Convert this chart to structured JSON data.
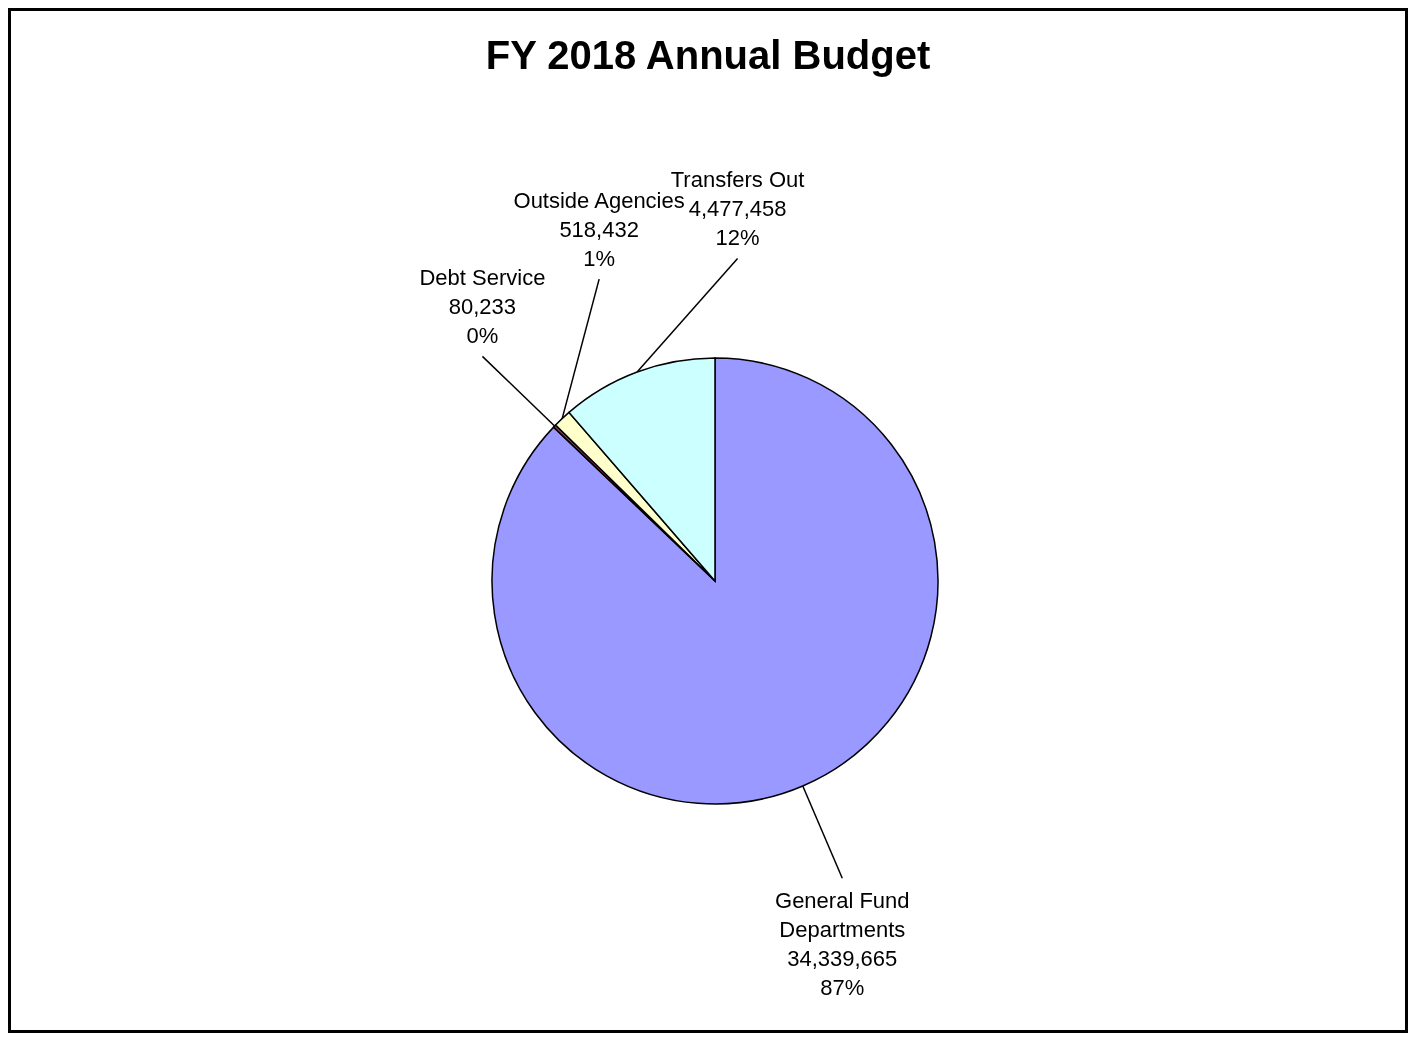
{
  "chart_data": {
    "type": "pie",
    "title": "FY 2018 Annual Budget",
    "categories": [
      "General Fund Departments",
      "Debt Service",
      "Outside Agencies",
      "Transfers Out"
    ],
    "values": [
      34339665,
      80233,
      518432,
      4477458
    ],
    "colors": [
      "#9999ff",
      "#993366",
      "#ffffcc",
      "#ccffff"
    ],
    "value_labels": [
      "34,339,665\n87%",
      "80,233\n0%",
      "518,432\n1%",
      "4,477,458\n12%"
    ]
  }
}
